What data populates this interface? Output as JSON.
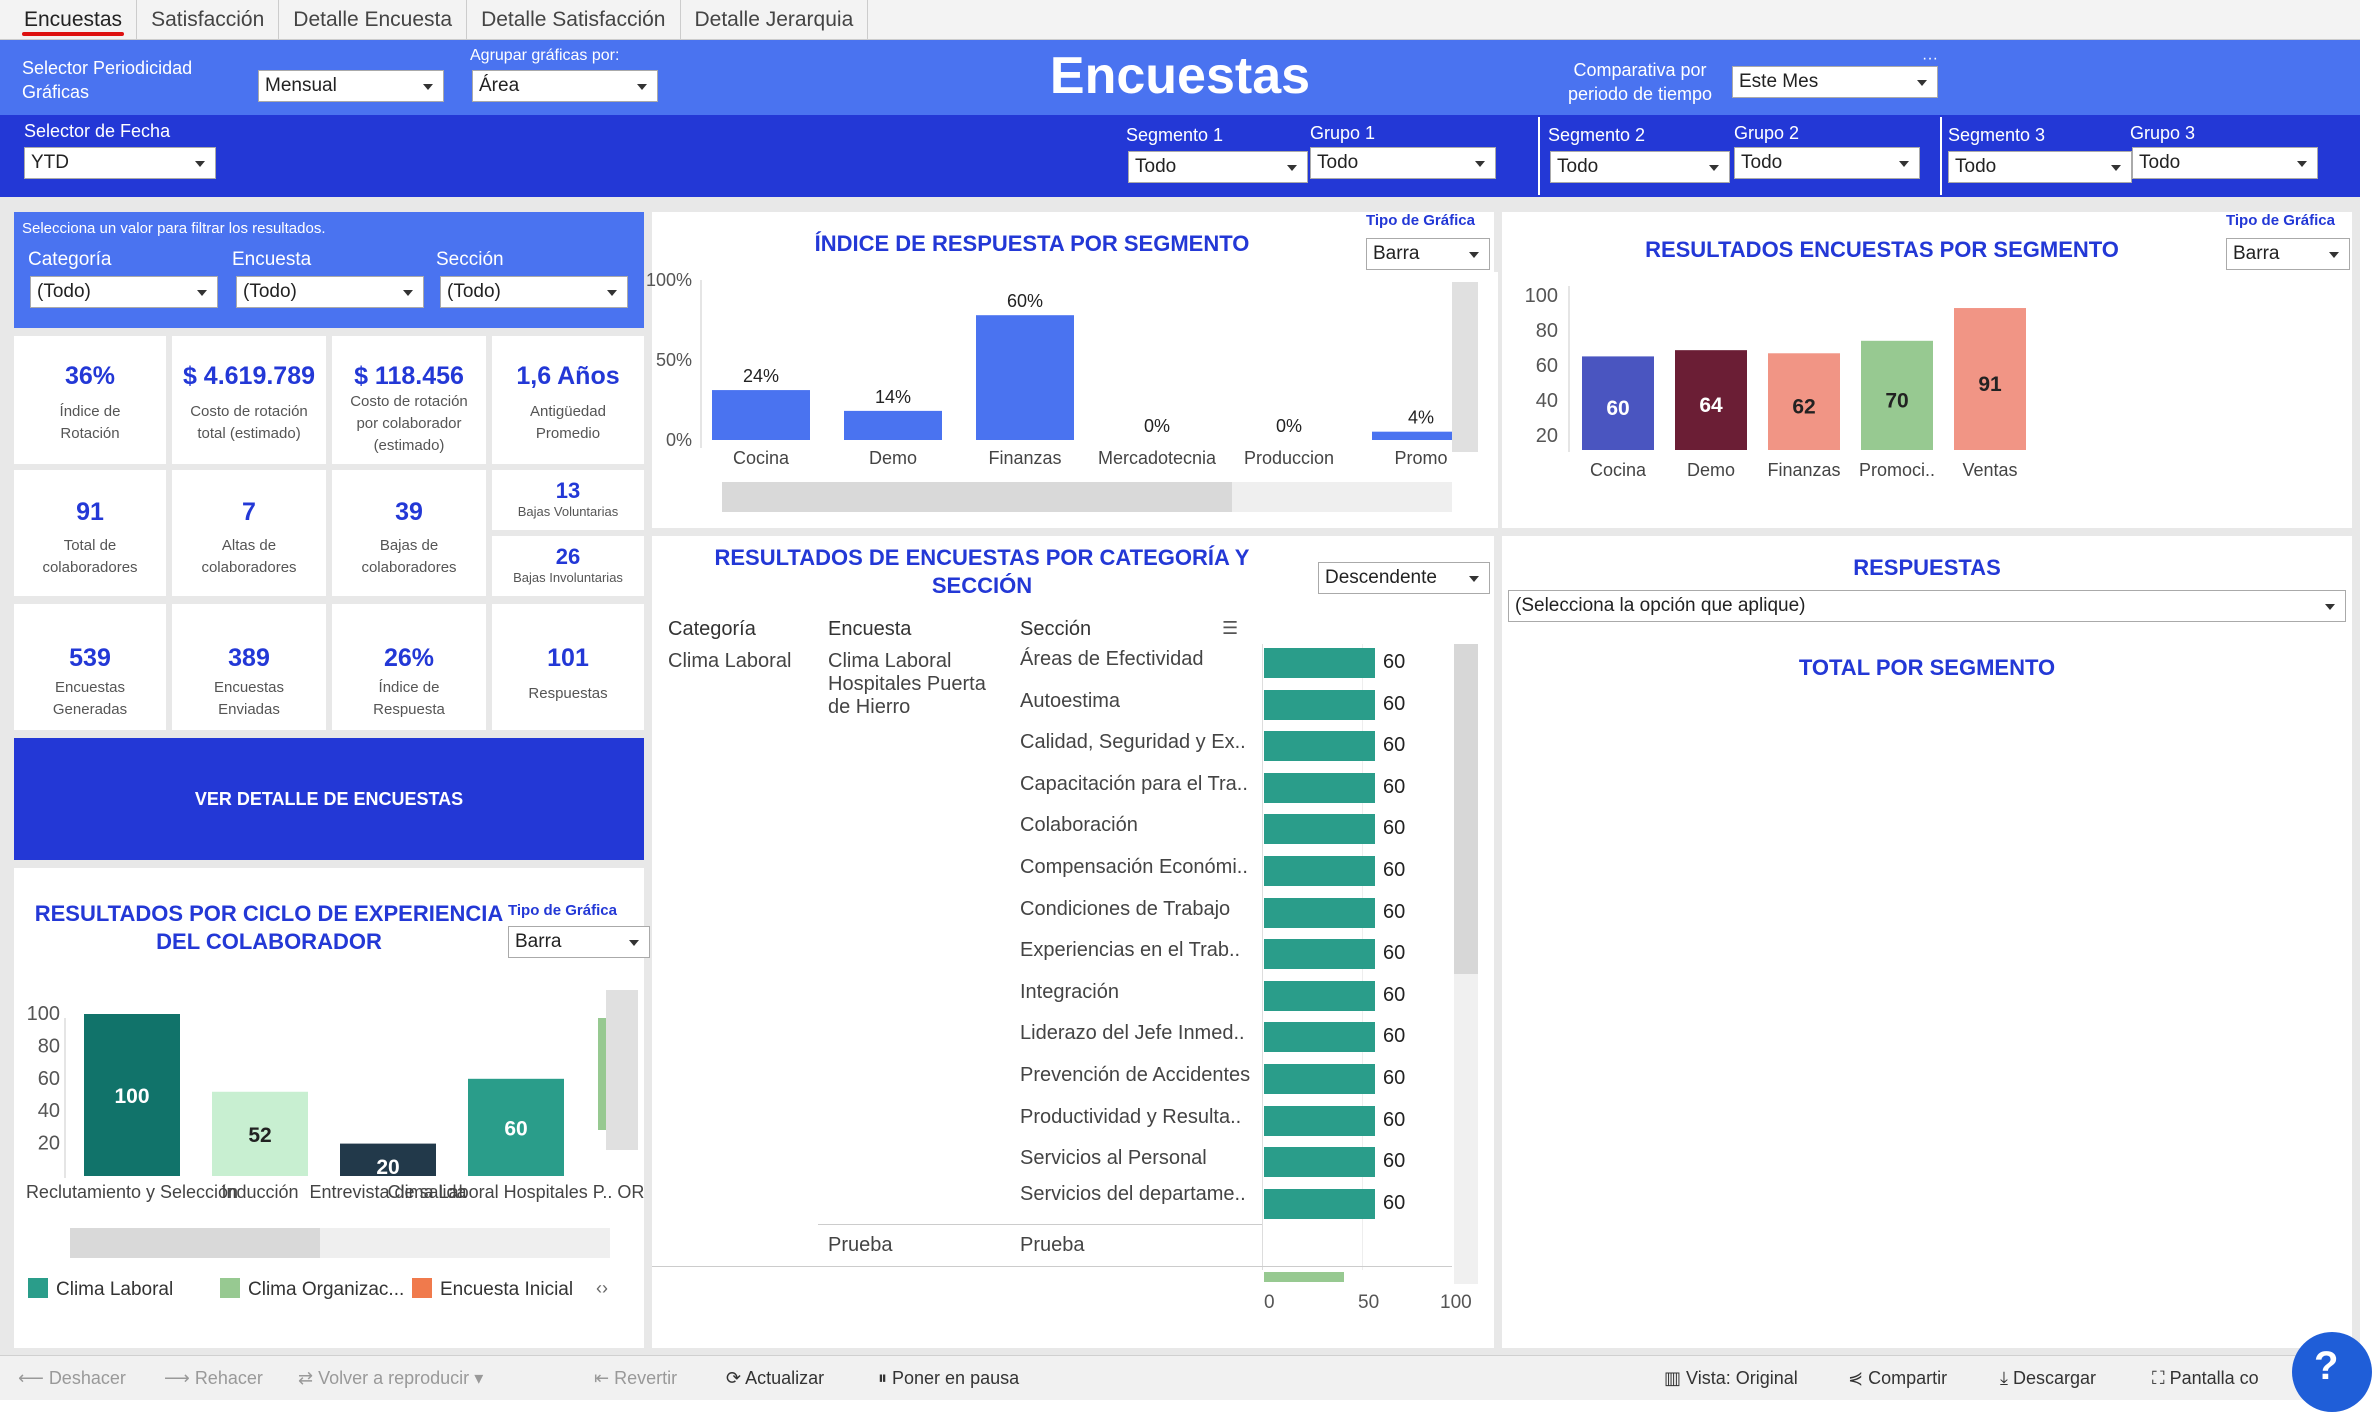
{
  "tabs": [
    "Encuestas",
    "Satisfacción",
    "Detalle Encuesta",
    "Detalle Satisfacción",
    "Detalle Jerarquia"
  ],
  "header": {
    "title": "Encuestas",
    "periodicidad_label": "Selector Periodicidad Gráficas",
    "periodicidad_value": "Mensual",
    "agrupar_label": "Agrupar gráficas por:",
    "agrupar_value": "Área",
    "comparativa_label": "Comparativa por periodo de tiempo",
    "comparativa_value": "Este Mes",
    "fecha_label": "Selector de Fecha",
    "fecha_value": "YTD",
    "segmentos": [
      {
        "seg_label": "Segmento 1",
        "seg_value": "Todo",
        "grp_label": "Grupo 1",
        "grp_value": "Todo"
      },
      {
        "seg_label": "Segmento 2",
        "seg_value": "Todo",
        "grp_label": "Grupo 2",
        "grp_value": "Todo"
      },
      {
        "seg_label": "Segmento 3",
        "seg_value": "Todo",
        "grp_label": "Grupo 3",
        "grp_value": "Todo"
      }
    ]
  },
  "filters": {
    "hint": "Selecciona un valor para filtrar los resultados.",
    "items": [
      {
        "label": "Categoría",
        "value": "(Todo)"
      },
      {
        "label": "Encuesta",
        "value": "(Todo)"
      },
      {
        "label": "Sección",
        "value": "(Todo)"
      }
    ]
  },
  "kpis": {
    "rotacion": {
      "value": "36%",
      "label": "Índice de Rotación"
    },
    "costo_total": {
      "value": "$ 4.619.789",
      "label": "Costo de rotación total (estimado)"
    },
    "costo_colab": {
      "value": "$ 118.456",
      "label": "Costo de rotación por colaborador (estimado)"
    },
    "antiguedad": {
      "value": "1,6 Años",
      "label": "Antigüedad Promedio"
    },
    "total_colab": {
      "value": "91",
      "label": "Total de colaboradores"
    },
    "altas": {
      "value": "7",
      "label": "Altas de colaboradores"
    },
    "bajas": {
      "value": "39",
      "label": "Bajas de colaboradores"
    },
    "bajas_vol": {
      "value": "13",
      "label": "Bajas Voluntarias"
    },
    "bajas_invol": {
      "value": "26",
      "label": "Bajas Involuntarias"
    },
    "generadas": {
      "value": "539",
      "label": "Encuestas Generadas"
    },
    "enviadas": {
      "value": "389",
      "label": "Encuestas Enviadas"
    },
    "indice_resp": {
      "value": "26%",
      "label": "Índice de Respuesta"
    },
    "respuestas": {
      "value": "101",
      "label": "Respuestas"
    }
  },
  "ver_detalle": "VER DETALLE DE ENCUESTAS",
  "tipo_grafica": "Tipo de Gráfica",
  "barra": "Barra",
  "indice_chart": {
    "title": "ÍNDICE DE RESPUESTA POR SEGMENTO",
    "chart_data": {
      "type": "bar",
      "categories": [
        "Cocina",
        "Demo",
        "Finanzas",
        "Mercadotecnia",
        "Produccion",
        "Promo"
      ],
      "values": [
        24,
        14,
        60,
        0,
        0,
        4
      ],
      "value_labels": [
        "24%",
        "14%",
        "60%",
        "0%",
        "0%",
        "4%"
      ],
      "yticks": [
        "100%",
        "50%",
        "0%"
      ],
      "ylim": [
        0,
        100
      ]
    }
  },
  "resultados_seg": {
    "title": "RESULTADOS ENCUESTAS POR SEGMENTO",
    "chart_data": {
      "type": "bar",
      "categories": [
        "Cocina",
        "Demo",
        "Finanzas",
        "Promoci..",
        "Ventas"
      ],
      "values": [
        60,
        64,
        62,
        70,
        91
      ],
      "colors": [
        "#4a55c0",
        "#6b1e35",
        "#f19585",
        "#97c991",
        "#f19585"
      ],
      "yticks": [
        "100",
        "80",
        "60",
        "40",
        "20"
      ],
      "ylim": [
        0,
        100
      ]
    }
  },
  "ciclo": {
    "title": "RESULTADOS POR CICLO DE EXPERIENCIA DEL COLABORADOR",
    "chart_data": {
      "type": "bar",
      "categories": [
        "Reclutamiento y Selección",
        "Inducción",
        "Entrevista de salida",
        "Clima Laboral Hospitales P.. OR"
      ],
      "values": [
        100,
        52,
        20,
        60
      ],
      "colors": [
        "#11736a",
        "#c8efd1",
        "#22394a",
        "#2a9d8a"
      ],
      "yticks": [
        "100",
        "80",
        "60",
        "40",
        "20"
      ],
      "ylim": [
        0,
        100
      ],
      "legend": [
        "Clima Laboral",
        "Clima Organizac...",
        "Encuesta Inicial"
      ],
      "legend_colors": [
        "#2a9d8a",
        "#97c991",
        "#f07a4c"
      ]
    }
  },
  "cat_table": {
    "title": "RESULTADOS DE ENCUESTAS POR CATEGORÍA Y SECCIÓN",
    "sort_value": "Descendente",
    "headers": [
      "Categoría",
      "Encuesta",
      "Sección"
    ],
    "categoria": "Clima Laboral",
    "encuesta": "Clima Laboral Hospitales Puerta de Hierro",
    "chart_data": {
      "type": "bar",
      "categories": [
        "Áreas de Efectividad",
        "Autoestima",
        "Calidad, Seguridad y Ex..",
        "Capacitación para el Tra..",
        "Colaboración",
        "Compensación Económi..",
        "Condiciones de Trabajo",
        "Experiencias en el Trab..",
        "Integración",
        "Liderazo del Jefe Inmed..",
        "Prevención de Accidentes",
        "Productividad y Resulta..",
        "Servicios al Personal",
        "Servicios del departame.."
      ],
      "values": [
        60,
        60,
        60,
        60,
        60,
        60,
        60,
        60,
        60,
        60,
        60,
        60,
        60,
        60
      ],
      "xticks": [
        "0",
        "50",
        "100"
      ],
      "xlim": [
        0,
        100
      ]
    },
    "prueba_enc": "Prueba",
    "prueba_sec": "Prueba"
  },
  "respuestas": {
    "title": "RESPUESTAS",
    "select": "(Selecciona la opción que aplique)",
    "total_title": "TOTAL POR SEGMENTO"
  },
  "toolbar": {
    "deshacer": "Deshacer",
    "rehacer": "Rehacer",
    "volver": "Volver a reproducir",
    "revertir": "Revertir",
    "actualizar": "Actualizar",
    "pausa": "Poner en pausa",
    "vista": "Vista: Original",
    "compartir": "Compartir",
    "descargar": "Descargar",
    "pantalla": "Pantalla co"
  }
}
